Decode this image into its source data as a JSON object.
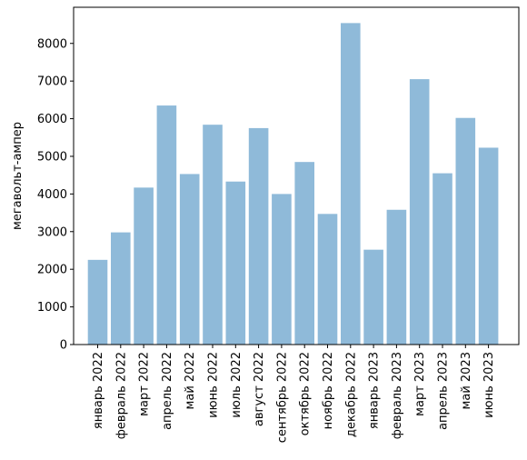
{
  "chart_data": {
    "type": "bar",
    "title": "",
    "xlabel": "",
    "ylabel": "мегавольт-ампер",
    "categories": [
      "январь 2022",
      "февраль 2022",
      "март 2022",
      "апрель 2022",
      "май 2022",
      "июнь 2022",
      "июль 2022",
      "август 2022",
      "сентябрь 2022",
      "октябрь 2022",
      "ноябрь 2022",
      "декабрь 2022",
      "январь 2023",
      "февраль 2023",
      "март 2023",
      "апрель 2023",
      "май 2023",
      "июнь 2023"
    ],
    "values": [
      2250,
      2980,
      4170,
      6350,
      4530,
      5840,
      4330,
      5750,
      4000,
      4850,
      3470,
      8540,
      2520,
      3580,
      7050,
      4550,
      6020,
      5230
    ],
    "ylim": [
      0,
      8960
    ],
    "yticks": [
      0,
      1000,
      2000,
      3000,
      4000,
      5000,
      6000,
      7000,
      8000
    ],
    "bar_color": "#8fbad9",
    "grid": false,
    "legend": "none"
  }
}
